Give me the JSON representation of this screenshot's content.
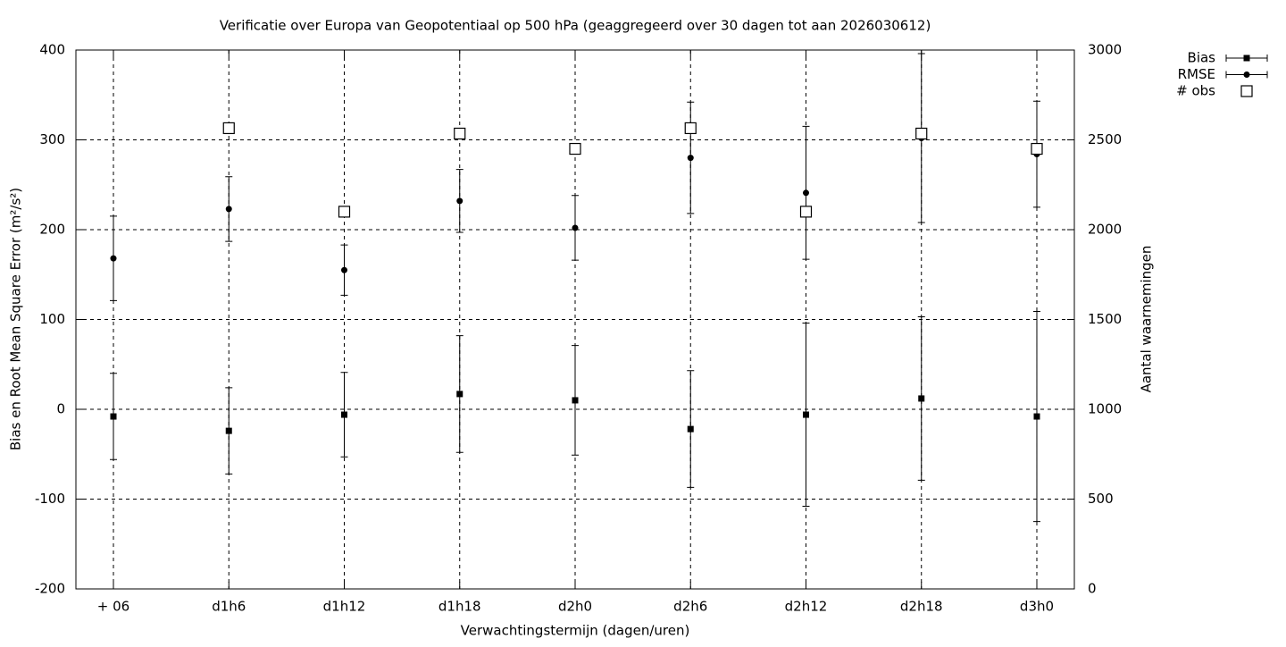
{
  "chart_data": {
    "type": "errorbar",
    "title": "Verificatie over Europa van Geopotentiaal op 500 hPa (geaggregeerd over 30 dagen tot aan 2026030612)",
    "xlabel": "Verwachtingstermijn (dagen/uren)",
    "ylabel": "Bias en Root Mean Square Error (m²/s²)",
    "y2label": "Aantal waarnemingen",
    "categories": [
      "+ 06",
      "d1h6",
      "d1h12",
      "d1h18",
      "d2h0",
      "d2h6",
      "d2h12",
      "d2h18",
      "d3h0"
    ],
    "series": [
      {
        "name": "Bias",
        "color": "#000000",
        "marker": "square",
        "values": [
          -8,
          -24,
          -6,
          17,
          10,
          -22,
          -6,
          12,
          -8
        ],
        "errors": [
          48,
          48,
          47,
          65,
          61,
          65,
          102,
          91,
          117
        ]
      },
      {
        "name": "RMSE",
        "color": "#000000",
        "marker": "circle",
        "values": [
          168,
          223,
          155,
          232,
          202,
          280,
          241,
          302,
          284
        ],
        "errors": [
          47,
          36,
          28,
          35,
          36,
          62,
          74,
          94,
          59
        ]
      },
      {
        "name": "# obs",
        "color": "#000000",
        "marker": "open-square",
        "axis": "y2",
        "values": [
          null,
          2565,
          2100,
          2535,
          2450,
          2565,
          2100,
          2535,
          2450
        ]
      }
    ],
    "ylim": [
      -200,
      400
    ],
    "yticks": [
      -200,
      -100,
      0,
      100,
      200,
      300,
      400
    ],
    "y2lim": [
      0,
      3000
    ],
    "y2ticks": [
      0,
      500,
      1000,
      1500,
      2000,
      2500,
      3000
    ],
    "grid": true,
    "legend": "top-right"
  }
}
